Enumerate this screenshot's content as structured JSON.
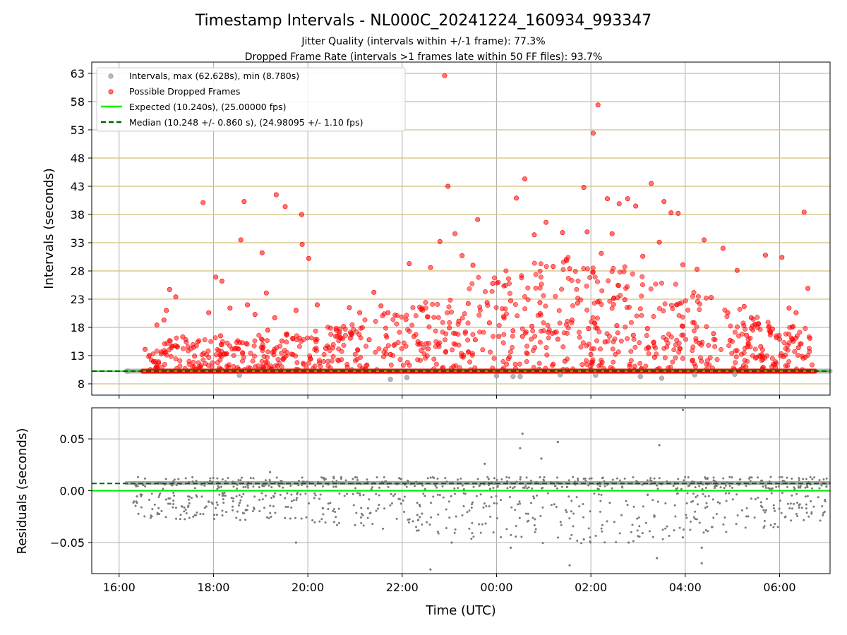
{
  "title": "Timestamp Intervals - NL000C_20241224_160934_993347",
  "subtitle1": "Jitter Quality (intervals within +/-1 frame): 77.3%",
  "subtitle2": "Dropped Frame Rate (intervals >1 frames late within 50 FF files): 93.7%",
  "colors": {
    "intervals": "#9e9e9e",
    "dropped": "#ff0000",
    "expected": "#00ee00",
    "median": "#006400",
    "hgrid_top": "#d4bf7a",
    "residuals": "#7a7a7a"
  },
  "chart_data": [
    {
      "type": "scatter",
      "ylabel": "Intervals (seconds)",
      "ylim": [
        6,
        65
      ],
      "yticks": [
        8,
        13,
        18,
        23,
        28,
        33,
        38,
        43,
        48,
        53,
        58,
        63
      ],
      "ytick_labels": [
        "8",
        "13",
        "18",
        "23",
        "28",
        "33",
        "38",
        "43",
        "48",
        "53",
        "58",
        "63"
      ],
      "xlim_hours": [
        15.42,
        31.07
      ],
      "xticks_hours": [
        16,
        18,
        20,
        22,
        24,
        26,
        28,
        30
      ],
      "legend_position": "upper-left",
      "legend": [
        "Intervals, max (62.628s), min (8.780s)",
        "Possible Dropped Frames",
        "Expected (10.240s), (25.00000 fps)",
        "Median (10.248 +/- 0.860 s), (24.98095 +/- 1.10 fps)"
      ],
      "expected": 10.24,
      "median": 10.248,
      "normal_interval_range_hours": [
        16.15,
        31.07
      ],
      "dropped_baseline_range_hours": [
        16.5,
        30.75
      ],
      "series": [
        {
          "name": "Possible Dropped Frames",
          "points": [
            [
              16.95,
              19.3
            ],
            [
              17.07,
              24.7
            ],
            [
              17.2,
              23.4
            ],
            [
              17.78,
              40.1
            ],
            [
              17.9,
              20.6
            ],
            [
              18.05,
              26.9
            ],
            [
              18.18,
              26.2
            ],
            [
              18.35,
              21.4
            ],
            [
              18.58,
              33.5
            ],
            [
              18.65,
              40.3
            ],
            [
              18.72,
              22.0
            ],
            [
              18.88,
              20.3
            ],
            [
              19.03,
              31.2
            ],
            [
              19.12,
              24.1
            ],
            [
              19.3,
              19.7
            ],
            [
              19.33,
              41.5
            ],
            [
              19.52,
              39.4
            ],
            [
              19.75,
              21.0
            ],
            [
              19.87,
              38.0
            ],
            [
              19.88,
              32.7
            ],
            [
              20.02,
              30.2
            ],
            [
              20.2,
              22.0
            ],
            [
              20.6,
              17.8
            ],
            [
              20.88,
              21.5
            ],
            [
              21.1,
              20.6
            ],
            [
              21.4,
              24.2
            ],
            [
              21.55,
              21.8
            ],
            [
              21.7,
              20.6
            ],
            [
              22.08,
              19.4
            ],
            [
              22.15,
              29.3
            ],
            [
              22.4,
              21.2
            ],
            [
              22.6,
              28.6
            ],
            [
              22.8,
              33.2
            ],
            [
              22.9,
              62.6
            ],
            [
              22.97,
              43.0
            ],
            [
              23.12,
              34.6
            ],
            [
              23.27,
              30.7
            ],
            [
              23.4,
              22.2
            ],
            [
              23.5,
              29.0
            ],
            [
              23.6,
              37.1
            ],
            [
              23.8,
              22.4
            ],
            [
              23.92,
              25.8
            ],
            [
              24.05,
              16.4
            ],
            [
              24.3,
              22.7
            ],
            [
              24.42,
              40.9
            ],
            [
              24.6,
              44.3
            ],
            [
              24.8,
              34.4
            ],
            [
              24.92,
              22.4
            ],
            [
              25.05,
              36.6
            ],
            [
              25.2,
              28.8
            ],
            [
              25.4,
              34.8
            ],
            [
              25.55,
              28.4
            ],
            [
              25.72,
              22.3
            ],
            [
              25.85,
              42.8
            ],
            [
              25.92,
              34.9
            ],
            [
              26.05,
              52.4
            ],
            [
              26.15,
              57.4
            ],
            [
              26.22,
              31.1
            ],
            [
              26.35,
              40.8
            ],
            [
              26.45,
              34.6
            ],
            [
              26.6,
              39.9
            ],
            [
              26.72,
              22.9
            ],
            [
              26.78,
              40.8
            ],
            [
              26.95,
              39.5
            ],
            [
              27.1,
              30.6
            ],
            [
              27.28,
              43.5
            ],
            [
              27.45,
              33.1
            ],
            [
              27.55,
              40.3
            ],
            [
              27.7,
              38.3
            ],
            [
              27.85,
              38.2
            ],
            [
              27.95,
              29.1
            ],
            [
              28.25,
              28.3
            ],
            [
              28.4,
              33.5
            ],
            [
              28.55,
              23.3
            ],
            [
              28.8,
              32.0
            ],
            [
              28.9,
              20.6
            ],
            [
              29.1,
              28.1
            ],
            [
              29.25,
              21.7
            ],
            [
              29.4,
              19.7
            ],
            [
              29.55,
              18.6
            ],
            [
              29.7,
              30.8
            ],
            [
              29.85,
              17.7
            ],
            [
              30.05,
              30.4
            ],
            [
              30.2,
              21.4
            ],
            [
              30.35,
              20.6
            ],
            [
              30.52,
              38.4
            ],
            [
              30.6,
              24.9
            ],
            [
              16.55,
              14.1
            ],
            [
              16.8,
              18.4
            ],
            [
              17.0,
              21.0
            ],
            [
              17.35,
              16.3
            ],
            [
              17.6,
              12.9
            ],
            [
              18.15,
              16.5
            ],
            [
              18.45,
              14.2
            ],
            [
              19.15,
              17.5
            ],
            [
              19.45,
              15.6
            ],
            [
              19.68,
              16.0
            ],
            [
              20.38,
              14.3
            ],
            [
              20.9,
              16.1
            ],
            [
              21.3,
              15.8
            ],
            [
              21.75,
              13.2
            ],
            [
              22.25,
              16.4
            ],
            [
              22.55,
              14.2
            ],
            [
              23.0,
              17.9
            ],
            [
              23.2,
              19.1
            ],
            [
              23.55,
              15.8
            ],
            [
              23.85,
              18.8
            ],
            [
              24.15,
              19.9
            ],
            [
              24.35,
              17.4
            ],
            [
              24.55,
              16.4
            ],
            [
              24.75,
              18.2
            ],
            [
              25.1,
              17.1
            ],
            [
              25.3,
              15.9
            ],
            [
              25.6,
              19.3
            ],
            [
              25.95,
              17.8
            ],
            [
              26.3,
              15.4
            ],
            [
              26.55,
              18.3
            ],
            [
              26.9,
              16.6
            ],
            [
              27.2,
              17.8
            ],
            [
              27.6,
              15.8
            ],
            [
              27.95,
              18.2
            ],
            [
              28.3,
              15.2
            ],
            [
              28.6,
              16.9
            ],
            [
              28.95,
              15.7
            ],
            [
              29.3,
              16.6
            ],
            [
              29.6,
              14.6
            ],
            [
              30.0,
              15.9
            ],
            [
              30.4,
              14.4
            ],
            [
              24.25,
              12.4
            ],
            [
              25.45,
              12.0
            ],
            [
              26.0,
              13.2
            ],
            [
              27.35,
              12.7
            ],
            [
              28.15,
              12.1
            ]
          ]
        },
        {
          "name": "Intervals",
          "points": [
            [
              16.18,
              10.24
            ],
            [
              18.55,
              9.5
            ],
            [
              21.75,
              8.8
            ],
            [
              22.1,
              9.1
            ],
            [
              24.0,
              9.4
            ],
            [
              24.35,
              9.3
            ],
            [
              24.5,
              9.3
            ],
            [
              25.35,
              9.6
            ],
            [
              26.1,
              9.5
            ],
            [
              27.05,
              9.3
            ],
            [
              27.5,
              9.0
            ],
            [
              28.2,
              9.6
            ],
            [
              29.05,
              9.7
            ]
          ]
        }
      ]
    },
    {
      "type": "scatter",
      "xlabel": "Time (UTC)",
      "ylabel": "Residuals (seconds)",
      "ylim": [
        -0.08,
        0.08
      ],
      "yticks": [
        -0.05,
        0.0,
        0.05
      ],
      "ytick_labels": [
        "−0.05",
        "0.00",
        "0.05"
      ],
      "xlim_hours": [
        15.42,
        31.07
      ],
      "xticks_hours": [
        16,
        18,
        20,
        22,
        24,
        26,
        28,
        30
      ],
      "xtick_labels": [
        "16:00",
        "18:00",
        "20:00",
        "22:00",
        "00:00",
        "02:00",
        "04:00",
        "06:00"
      ],
      "expected": 0.0,
      "median": 0.007,
      "outliers": [
        [
          22.6,
          -0.076
        ],
        [
          25.55,
          -0.072
        ],
        [
          27.95,
          0.078
        ],
        [
          24.55,
          0.055
        ],
        [
          25.3,
          0.047
        ],
        [
          24.5,
          0.041
        ],
        [
          27.45,
          0.044
        ],
        [
          28.35,
          -0.07
        ],
        [
          27.4,
          -0.065
        ],
        [
          23.05,
          -0.05
        ],
        [
          19.75,
          -0.05
        ],
        [
          26.8,
          -0.05
        ],
        [
          24.3,
          -0.055
        ],
        [
          19.2,
          0.018
        ],
        [
          23.75,
          0.026
        ],
        [
          25.85,
          -0.047
        ],
        [
          28.35,
          -0.055
        ],
        [
          24.95,
          0.031
        ],
        [
          27.95,
          -0.045
        ]
      ]
    }
  ]
}
